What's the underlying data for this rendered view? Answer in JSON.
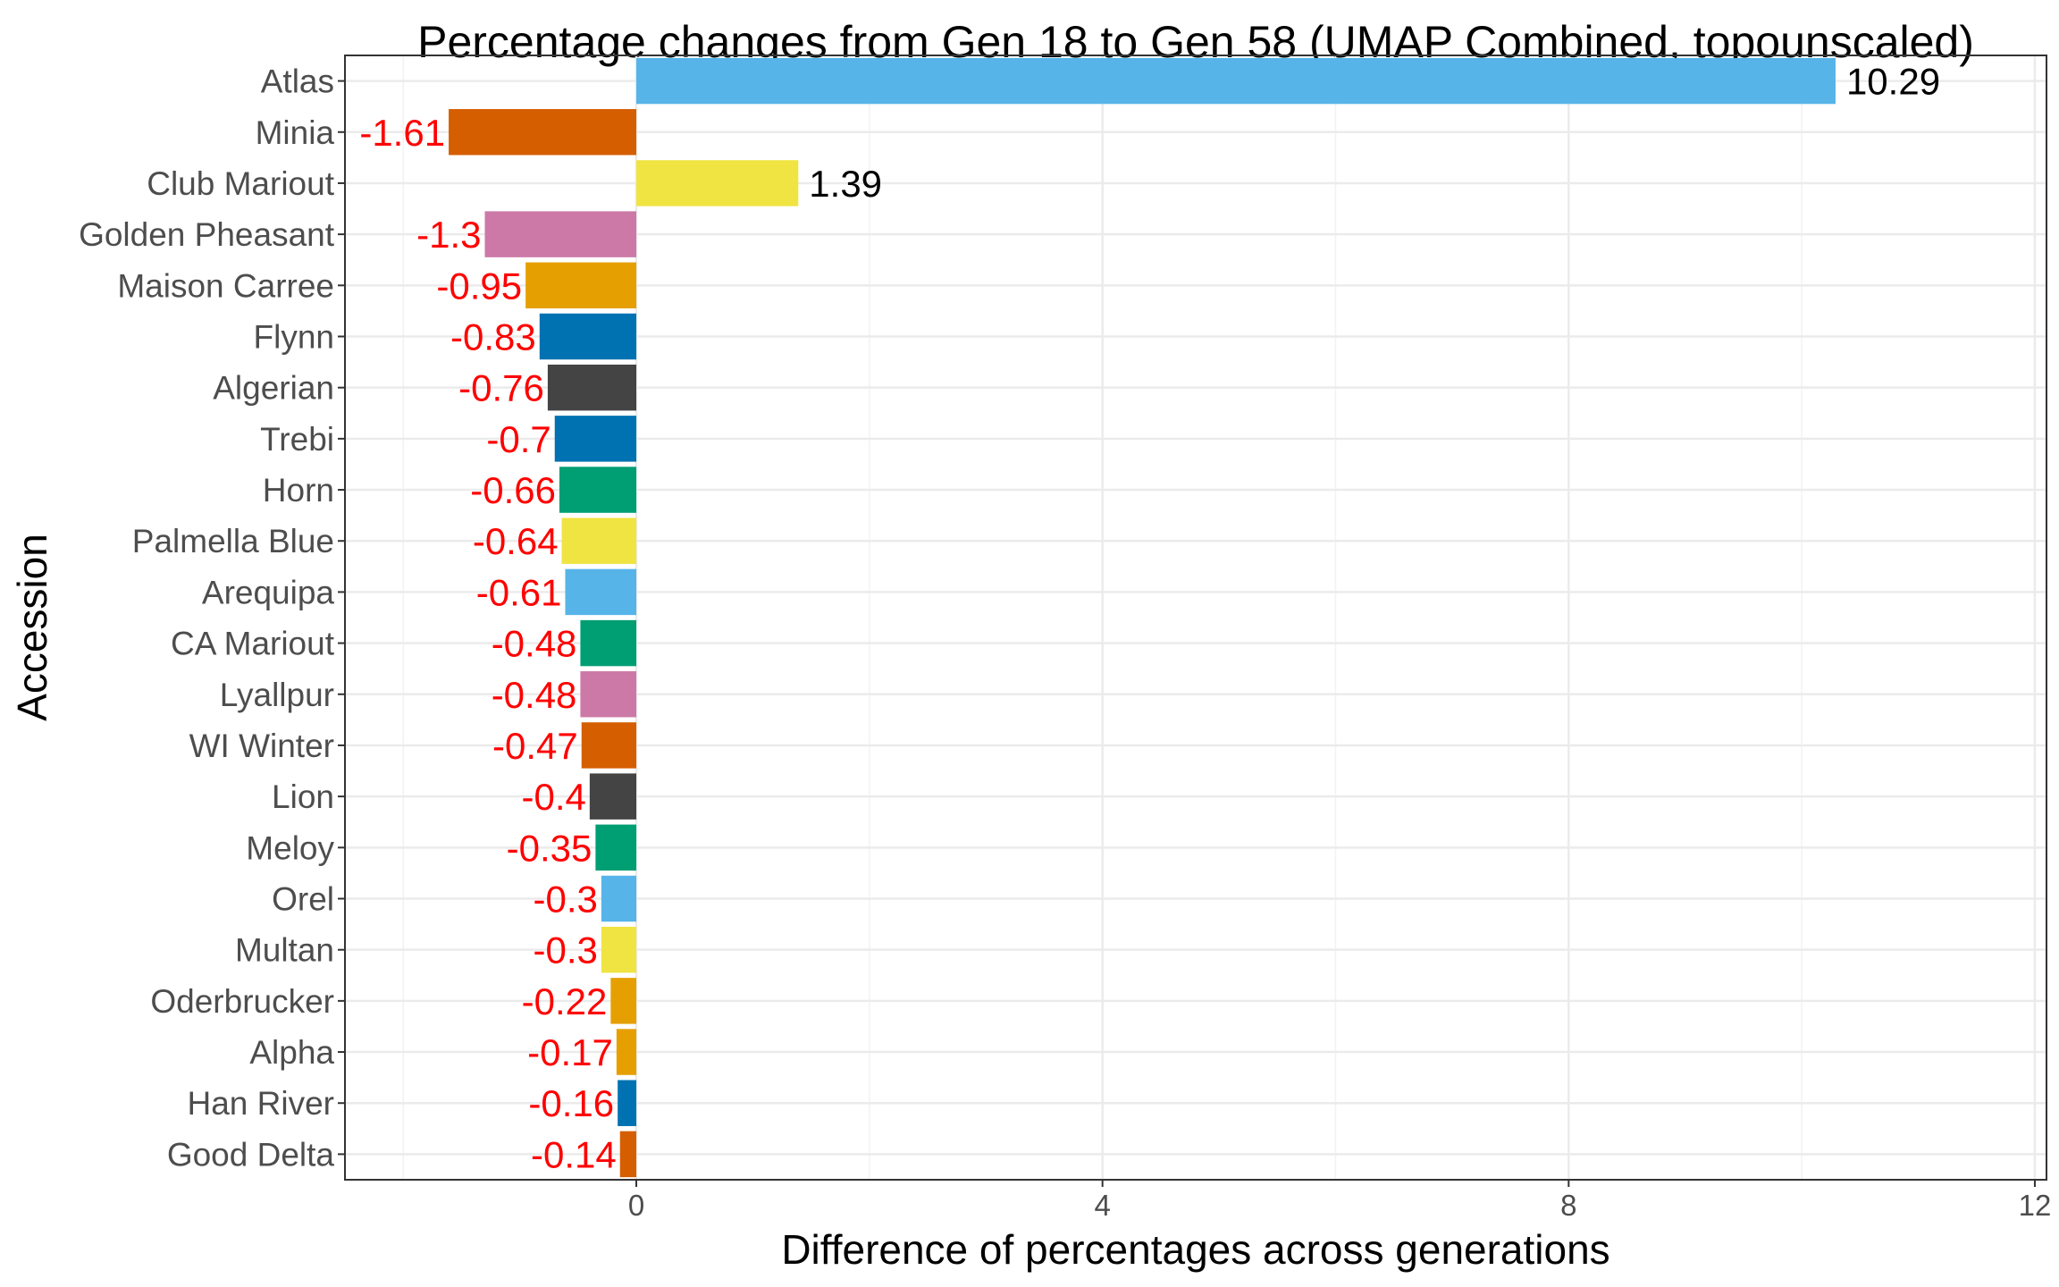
{
  "chart_data": {
    "type": "bar",
    "orientation": "horizontal",
    "title": "Percentage changes from Gen 18 to Gen 58 (UMAP Combined, topounscaled)",
    "xlabel": "Difference of percentages across generations",
    "ylabel": "Accession",
    "xlim": [
      -2.5,
      12.1
    ],
    "xticks": [
      0,
      4,
      8,
      12
    ],
    "grid": true,
    "legend": "none",
    "positive_label_color": "#000000",
    "negative_label_color": "#ff0000",
    "bars": [
      {
        "category": "Atlas",
        "value": 10.29,
        "label": "10.29",
        "color": "#56b4e9"
      },
      {
        "category": "Minia",
        "value": -1.61,
        "label": "-1.61",
        "color": "#d55e00"
      },
      {
        "category": "Club Mariout",
        "value": 1.39,
        "label": "1.39",
        "color": "#f0e442"
      },
      {
        "category": "Golden Pheasant",
        "value": -1.3,
        "label": "-1.3",
        "color": "#cc79a7"
      },
      {
        "category": "Maison Carree",
        "value": -0.95,
        "label": "-0.95",
        "color": "#e69f00"
      },
      {
        "category": "Flynn",
        "value": -0.83,
        "label": "-0.83",
        "color": "#0072b2"
      },
      {
        "category": "Algerian",
        "value": -0.76,
        "label": "-0.76",
        "color": "#444444"
      },
      {
        "category": "Trebi",
        "value": -0.7,
        "label": "-0.7",
        "color": "#0072b2"
      },
      {
        "category": "Horn",
        "value": -0.66,
        "label": "-0.66",
        "color": "#009e73"
      },
      {
        "category": "Palmella Blue",
        "value": -0.64,
        "label": "-0.64",
        "color": "#f0e442"
      },
      {
        "category": "Arequipa",
        "value": -0.61,
        "label": "-0.61",
        "color": "#56b4e9"
      },
      {
        "category": "CA Mariout",
        "value": -0.48,
        "label": "-0.48",
        "color": "#009e73"
      },
      {
        "category": "Lyallpur",
        "value": -0.48,
        "label": "-0.48",
        "color": "#cc79a7"
      },
      {
        "category": "WI Winter",
        "value": -0.47,
        "label": "-0.47",
        "color": "#d55e00"
      },
      {
        "category": "Lion",
        "value": -0.4,
        "label": "-0.4",
        "color": "#444444"
      },
      {
        "category": "Meloy",
        "value": -0.35,
        "label": "-0.35",
        "color": "#009e73"
      },
      {
        "category": "Orel",
        "value": -0.3,
        "label": "-0.3",
        "color": "#56b4e9"
      },
      {
        "category": "Multan",
        "value": -0.3,
        "label": "-0.3",
        "color": "#f0e442"
      },
      {
        "category": "Oderbrucker",
        "value": -0.22,
        "label": "-0.22",
        "color": "#e69f00"
      },
      {
        "category": "Alpha",
        "value": -0.17,
        "label": "-0.17",
        "color": "#e69f00"
      },
      {
        "category": "Han River",
        "value": -0.16,
        "label": "-0.16",
        "color": "#0072b2"
      },
      {
        "category": "Good Delta",
        "value": -0.14,
        "label": "-0.14",
        "color": "#d55e00"
      }
    ]
  }
}
